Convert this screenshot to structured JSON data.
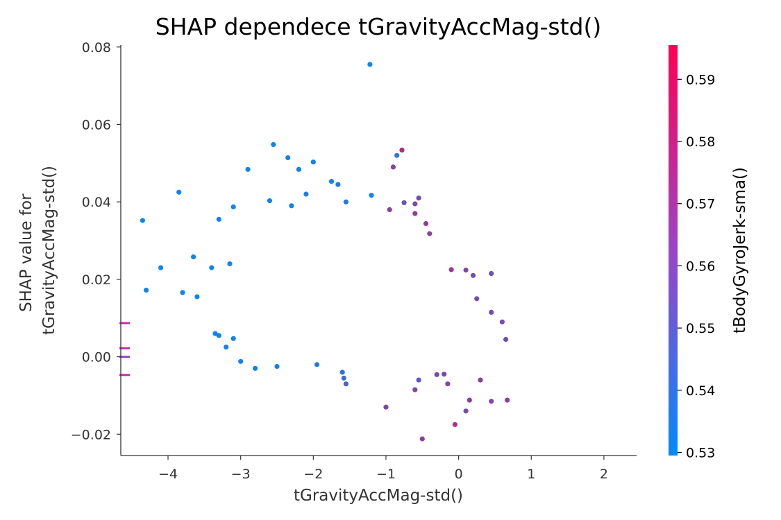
{
  "chart_data": {
    "type": "scatter",
    "title": "SHAP dependece tGravityAccMag-std()",
    "xlabel": "tGravityAccMag-std()",
    "ylabel": [
      "SHAP value for",
      "tGravityAccMag-std()"
    ],
    "colorbar_label": "tBodyGyroJerk-sma()",
    "xlim": [
      -4.65,
      2.45
    ],
    "ylim": [
      -0.0255,
      0.0805
    ],
    "color_range": [
      0.5295,
      0.5955
    ],
    "xticks": [
      -4,
      -3,
      -2,
      -1,
      0,
      1,
      2
    ],
    "xtick_labels": [
      "−4",
      "−3",
      "−2",
      "−1",
      "0",
      "1",
      "2"
    ],
    "yticks": [
      -0.02,
      0.0,
      0.02,
      0.04,
      0.06,
      0.08
    ],
    "ytick_labels": [
      "−0.02",
      "0.00",
      "0.02",
      "0.04",
      "0.06",
      "0.08"
    ],
    "colorbar_ticks": [
      0.53,
      0.54,
      0.55,
      0.56,
      0.57,
      0.58,
      0.59
    ],
    "colorbar_tick_labels": [
      "0.53",
      "0.54",
      "0.55",
      "0.56",
      "0.57",
      "0.58",
      "0.59"
    ],
    "colormap": [
      "#008bfb",
      "#ff0052"
    ],
    "grid": false,
    "nan_markers": [
      {
        "y": 0.0087,
        "color": "#c42bb0"
      },
      {
        "y": 0.0022,
        "color": "#c42bb0"
      },
      {
        "y": 0.0,
        "color": "#9b44c8"
      },
      {
        "y": -0.0047,
        "color": "#c42bb0"
      }
    ],
    "points": [
      [
        -1.22,
        0.0755,
        0.531
      ],
      [
        -2.55,
        0.0548,
        0.533
      ],
      [
        -0.78,
        0.0534,
        0.575
      ],
      [
        -0.85,
        0.052,
        0.542
      ],
      [
        -2.35,
        0.0514,
        0.536
      ],
      [
        -2.0,
        0.0503,
        0.534
      ],
      [
        -0.9,
        0.049,
        0.565
      ],
      [
        -2.2,
        0.0484,
        0.534
      ],
      [
        -2.9,
        0.0484,
        0.533
      ],
      [
        -1.75,
        0.0453,
        0.534
      ],
      [
        -1.66,
        0.0445,
        0.537
      ],
      [
        -3.85,
        0.0425,
        0.532
      ],
      [
        -2.1,
        0.042,
        0.535
      ],
      [
        -1.2,
        0.0417,
        0.533
      ],
      [
        -0.55,
        0.041,
        0.56
      ],
      [
        -2.6,
        0.0403,
        0.533
      ],
      [
        -1.55,
        0.04,
        0.538
      ],
      [
        -0.75,
        0.0398,
        0.557
      ],
      [
        -0.6,
        0.0395,
        0.562
      ],
      [
        -3.1,
        0.0387,
        0.533
      ],
      [
        -2.3,
        0.039,
        0.534
      ],
      [
        -0.95,
        0.038,
        0.565
      ],
      [
        -0.6,
        0.037,
        0.568
      ],
      [
        -4.35,
        0.0352,
        0.532
      ],
      [
        -3.3,
        0.0355,
        0.533
      ],
      [
        -0.45,
        0.0344,
        0.567
      ],
      [
        -0.4,
        0.0318,
        0.565
      ],
      [
        -3.65,
        0.0258,
        0.533
      ],
      [
        -4.1,
        0.023,
        0.532
      ],
      [
        -3.4,
        0.023,
        0.533
      ],
      [
        -3.15,
        0.024,
        0.534
      ],
      [
        -4.3,
        0.0172,
        0.533
      ],
      [
        -3.8,
        0.0166,
        0.533
      ],
      [
        -3.6,
        0.0155,
        0.534
      ],
      [
        -3.35,
        0.006,
        0.533
      ],
      [
        -3.3,
        0.0055,
        0.533
      ],
      [
        -3.1,
        0.0047,
        0.534
      ],
      [
        -3.2,
        0.0025,
        0.533
      ],
      [
        -0.1,
        0.0225,
        0.568
      ],
      [
        0.1,
        0.0224,
        0.563
      ],
      [
        0.2,
        0.021,
        0.56
      ],
      [
        0.45,
        0.0215,
        0.557
      ],
      [
        0.25,
        0.015,
        0.56
      ],
      [
        0.45,
        0.0115,
        0.56
      ],
      [
        0.6,
        0.009,
        0.56
      ],
      [
        0.65,
        0.0045,
        0.56
      ],
      [
        -1.6,
        -0.004,
        0.54
      ],
      [
        -1.55,
        -0.007,
        0.548
      ],
      [
        -1.58,
        -0.0055,
        0.545
      ],
      [
        -1.0,
        -0.013,
        0.562
      ],
      [
        -0.6,
        -0.0085,
        0.564
      ],
      [
        -0.5,
        -0.0212,
        0.565
      ],
      [
        -0.05,
        -0.0175,
        0.575
      ],
      [
        0.1,
        -0.014,
        0.56
      ],
      [
        0.15,
        -0.0112,
        0.565
      ],
      [
        0.45,
        -0.0115,
        0.562
      ],
      [
        0.67,
        -0.0112,
        0.565
      ],
      [
        -0.3,
        -0.0046,
        0.56
      ],
      [
        -0.55,
        -0.006,
        0.553
      ],
      [
        -0.2,
        -0.0045,
        0.56
      ],
      [
        -0.15,
        -0.007,
        0.563
      ],
      [
        0.3,
        -0.006,
        0.565
      ],
      [
        -2.5,
        -0.0025,
        0.536
      ],
      [
        -1.95,
        -0.002,
        0.54
      ],
      [
        -2.8,
        -0.003,
        0.533
      ],
      [
        -3.0,
        -0.0012,
        0.534
      ]
    ]
  }
}
